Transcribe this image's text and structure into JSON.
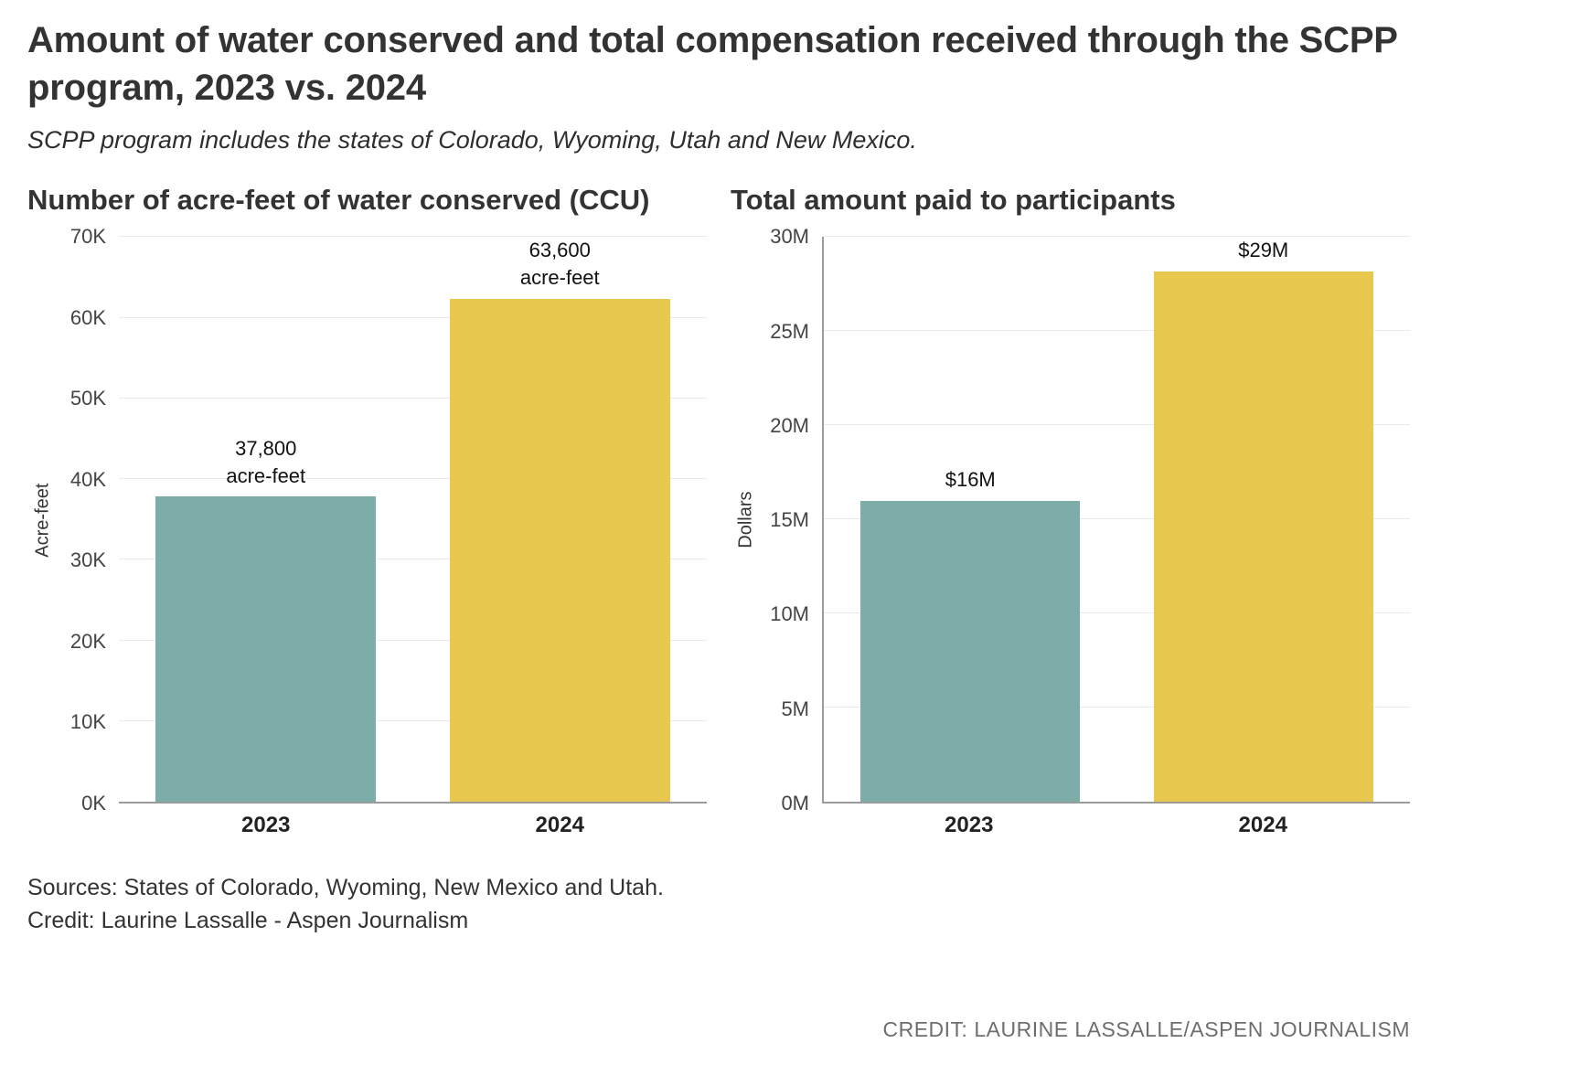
{
  "header": {
    "title": "Amount of water conserved and total compensation received through the SCPP program, 2023 vs. 2024",
    "subtitle": "SCPP program includes the states of Colorado, Wyoming, Utah and New Mexico."
  },
  "footer": {
    "sources_line": "Sources: States of Colorado, Wyoming, New Mexico and Utah.",
    "credit_line": "Credit: Laurine Lassalle - Aspen Journalism",
    "bottom_credit": "CREDIT: LAURINE LASSALLE/ASPEN JOURNALISM"
  },
  "colors": {
    "bar_2023": "#7cada8",
    "bar_2024": "#e8c84e",
    "gridline": "#e9e9e9",
    "axis": "#9b9b9b"
  },
  "chart_data": [
    {
      "type": "bar",
      "title": "Number of acre-feet of water conserved (CCU)",
      "xlabel": "",
      "ylabel": "Acre-feet",
      "categories": [
        "2023",
        "2024"
      ],
      "values": [
        37800,
        63600
      ],
      "bar_labels": [
        "37,800\nacre-feet",
        "63,600\nacre-feet"
      ],
      "bar_colors": [
        "#7cada8",
        "#e8c84e"
      ],
      "ylim": [
        0,
        70000
      ],
      "yticks": [
        {
          "value": 0,
          "label": "0K"
        },
        {
          "value": 10000,
          "label": "10K"
        },
        {
          "value": 20000,
          "label": "20K"
        },
        {
          "value": 30000,
          "label": "30K"
        },
        {
          "value": 40000,
          "label": "40K"
        },
        {
          "value": 50000,
          "label": "50K"
        },
        {
          "value": 60000,
          "label": "60K"
        },
        {
          "value": 70000,
          "label": "70K"
        }
      ],
      "grid": true,
      "legend": "none"
    },
    {
      "type": "bar",
      "title": "Total amount paid to participants",
      "xlabel": "",
      "ylabel": "Dollars",
      "categories": [
        "2023",
        "2024"
      ],
      "values": [
        16000000,
        28600000
      ],
      "bar_labels": [
        "$16M",
        "$29M"
      ],
      "bar_colors": [
        "#7cada8",
        "#e8c84e"
      ],
      "ylim": [
        0,
        30000000
      ],
      "yticks": [
        {
          "value": 0,
          "label": "0M"
        },
        {
          "value": 5000000,
          "label": "5M"
        },
        {
          "value": 10000000,
          "label": "10M"
        },
        {
          "value": 15000000,
          "label": "15M"
        },
        {
          "value": 20000000,
          "label": "20M"
        },
        {
          "value": 25000000,
          "label": "25M"
        },
        {
          "value": 30000000,
          "label": "30M"
        }
      ],
      "grid": true,
      "legend": "none"
    }
  ]
}
